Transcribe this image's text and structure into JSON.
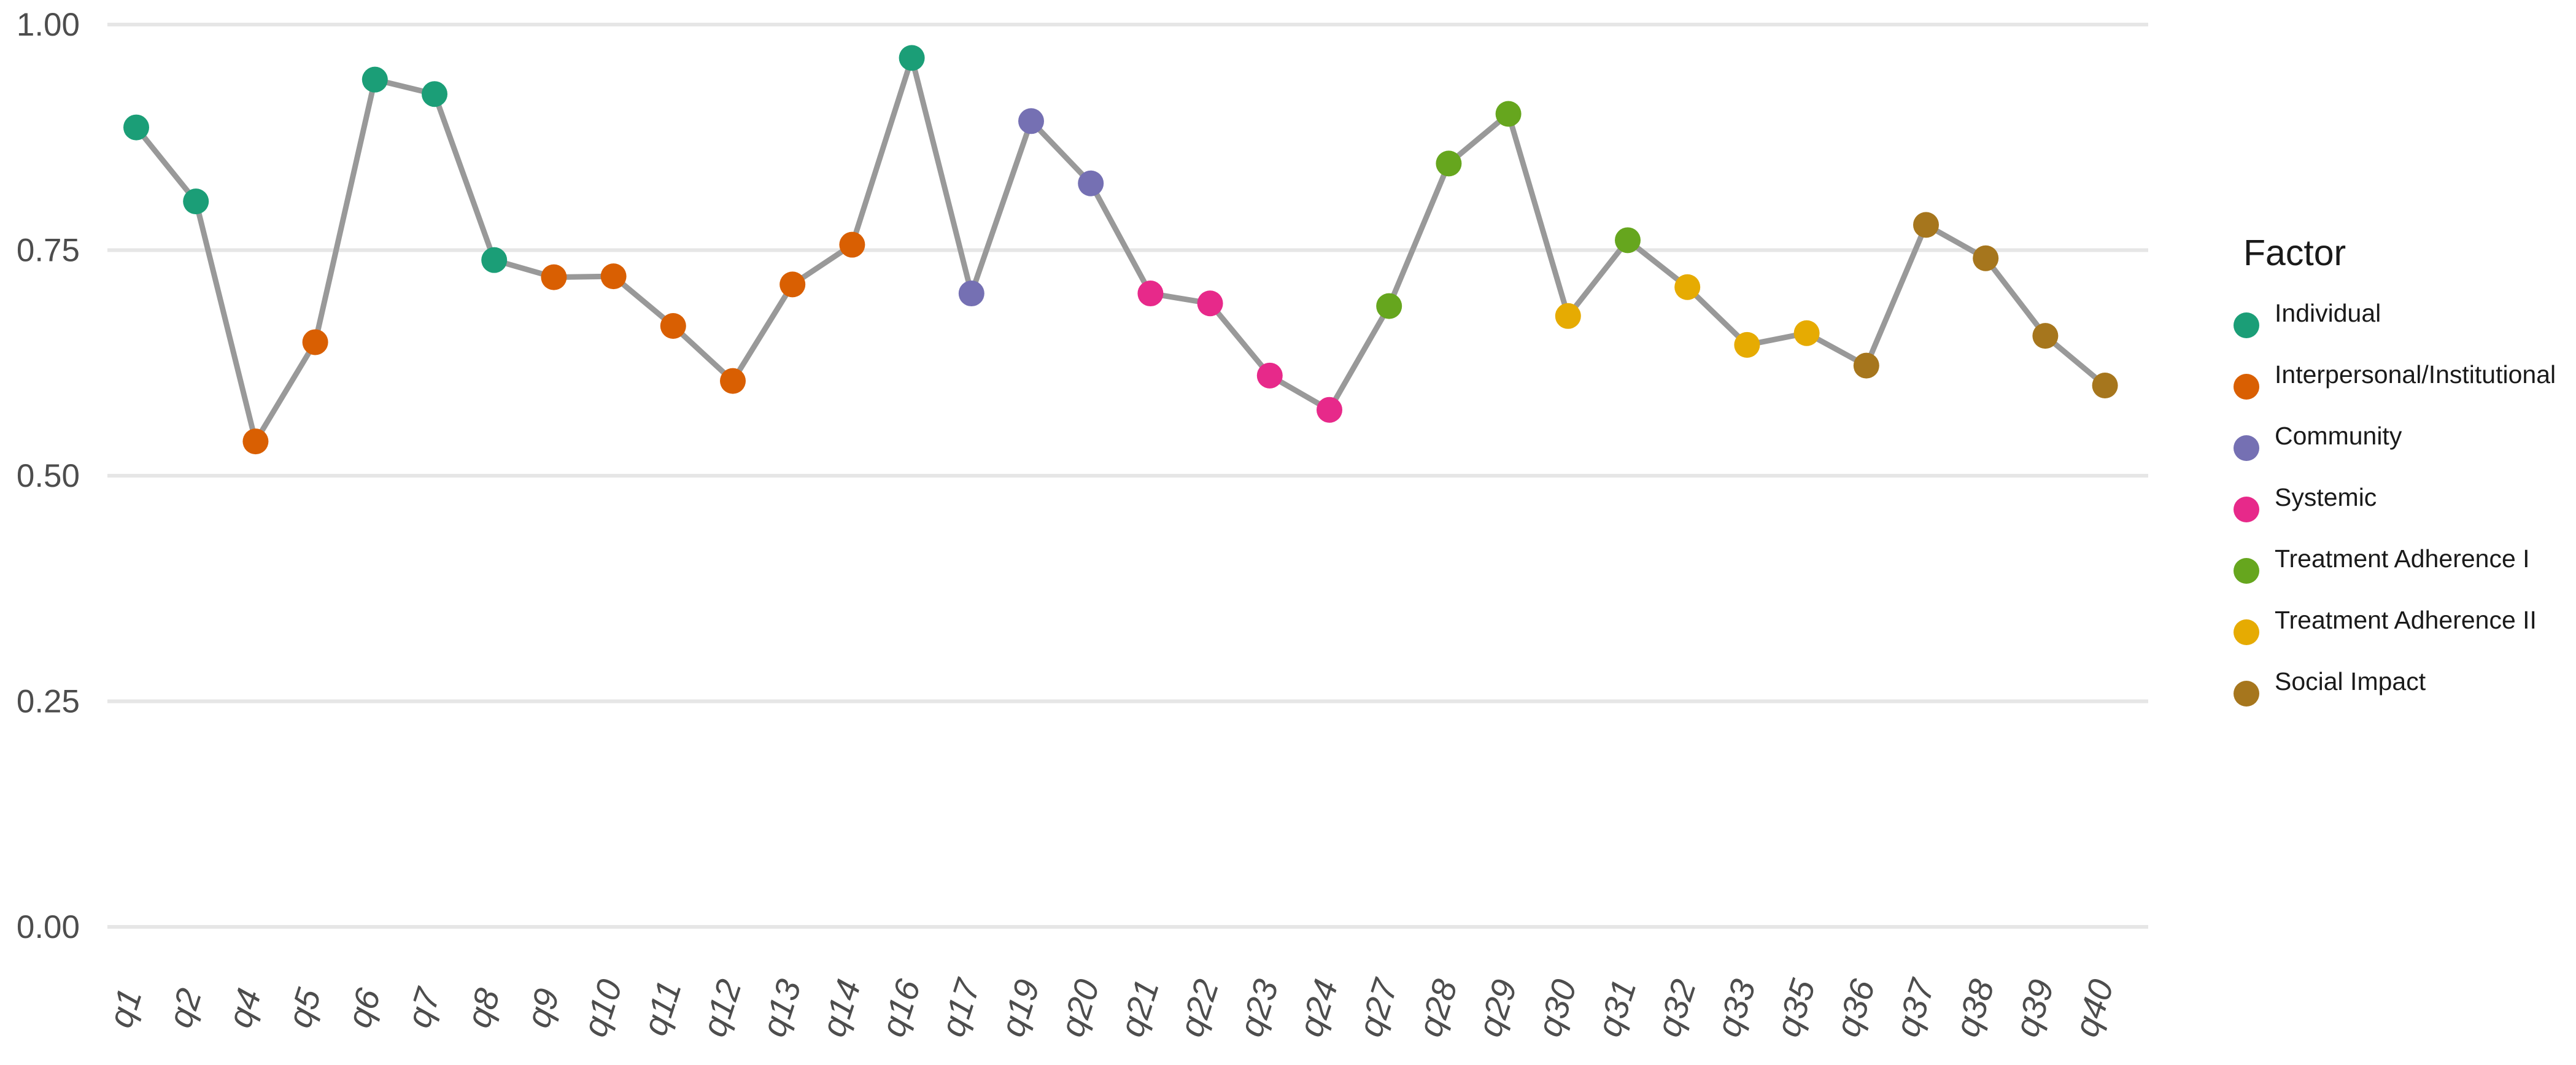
{
  "chart_data": {
    "type": "scatter",
    "connected": true,
    "ylim": [
      0,
      1
    ],
    "y_ticks": [
      "0.00",
      "0.25",
      "0.50",
      "0.75",
      "1.00"
    ],
    "grid": true,
    "legend_position": "right",
    "legend_title": "Factor",
    "connector_color": "#999999",
    "factors": [
      {
        "name": "Individual",
        "color": "#1b9e77"
      },
      {
        "name": "Interpersonal/Institutional",
        "color": "#d95f02"
      },
      {
        "name": "Community",
        "color": "#7570b3"
      },
      {
        "name": "Systemic",
        "color": "#e7298a"
      },
      {
        "name": "Treatment Adherence I",
        "color": "#66a61e"
      },
      {
        "name": "Treatment Adherence II",
        "color": "#e6ab02"
      },
      {
        "name": "Social Impact",
        "color": "#a6761d"
      }
    ],
    "points": [
      {
        "x": "q1",
        "y": 0.886,
        "factor": "Individual"
      },
      {
        "x": "q2",
        "y": 0.804,
        "factor": "Individual"
      },
      {
        "x": "q4",
        "y": 0.538,
        "factor": "Interpersonal/Institutional"
      },
      {
        "x": "q5",
        "y": 0.648,
        "factor": "Interpersonal/Institutional"
      },
      {
        "x": "q6",
        "y": 0.939,
        "factor": "Individual"
      },
      {
        "x": "q7",
        "y": 0.923,
        "factor": "Individual"
      },
      {
        "x": "q8",
        "y": 0.739,
        "factor": "Individual"
      },
      {
        "x": "q9",
        "y": 0.72,
        "factor": "Interpersonal/Institutional"
      },
      {
        "x": "q10",
        "y": 0.721,
        "factor": "Interpersonal/Institutional"
      },
      {
        "x": "q11",
        "y": 0.666,
        "factor": "Interpersonal/Institutional"
      },
      {
        "x": "q12",
        "y": 0.605,
        "factor": "Interpersonal/Institutional"
      },
      {
        "x": "q13",
        "y": 0.712,
        "factor": "Interpersonal/Institutional"
      },
      {
        "x": "q14",
        "y": 0.756,
        "factor": "Interpersonal/Institutional"
      },
      {
        "x": "q16",
        "y": 0.963,
        "factor": "Individual"
      },
      {
        "x": "q17",
        "y": 0.702,
        "factor": "Community"
      },
      {
        "x": "q19",
        "y": 0.893,
        "factor": "Community"
      },
      {
        "x": "q20",
        "y": 0.824,
        "factor": "Community"
      },
      {
        "x": "q21",
        "y": 0.702,
        "factor": "Systemic"
      },
      {
        "x": "q22",
        "y": 0.691,
        "factor": "Systemic"
      },
      {
        "x": "q23",
        "y": 0.611,
        "factor": "Systemic"
      },
      {
        "x": "q24",
        "y": 0.573,
        "factor": "Systemic"
      },
      {
        "x": "q27",
        "y": 0.688,
        "factor": "Treatment Adherence I"
      },
      {
        "x": "q28",
        "y": 0.846,
        "factor": "Treatment Adherence I"
      },
      {
        "x": "q29",
        "y": 0.901,
        "factor": "Treatment Adherence I"
      },
      {
        "x": "q30",
        "y": 0.677,
        "factor": "Treatment Adherence II"
      },
      {
        "x": "q31",
        "y": 0.761,
        "factor": "Treatment Adherence I"
      },
      {
        "x": "q32",
        "y": 0.709,
        "factor": "Treatment Adherence II"
      },
      {
        "x": "q33",
        "y": 0.645,
        "factor": "Treatment Adherence II"
      },
      {
        "x": "q35",
        "y": 0.658,
        "factor": "Treatment Adherence II"
      },
      {
        "x": "q36",
        "y": 0.622,
        "factor": "Social Impact"
      },
      {
        "x": "q37",
        "y": 0.778,
        "factor": "Social Impact"
      },
      {
        "x": "q38",
        "y": 0.741,
        "factor": "Social Impact"
      },
      {
        "x": "q39",
        "y": 0.655,
        "factor": "Social Impact"
      },
      {
        "x": "q40",
        "y": 0.6,
        "factor": "Social Impact"
      }
    ]
  }
}
